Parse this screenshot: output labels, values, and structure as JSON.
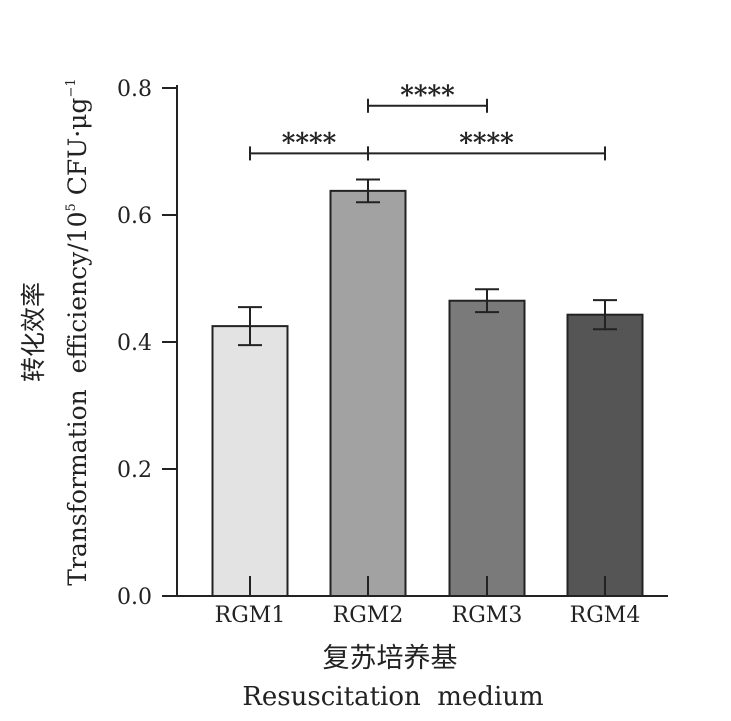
{
  "chart_data": {
    "type": "bar",
    "categories": [
      "RGM1",
      "RGM2",
      "RGM3",
      "RGM4"
    ],
    "values": [
      0.425,
      0.638,
      0.465,
      0.443
    ],
    "errors": [
      0.03,
      0.018,
      0.018,
      0.023
    ],
    "bar_colors": [
      "#e3e3e3",
      "#a2a2a2",
      "#7a7a7a",
      "#555555"
    ],
    "ylim": [
      0,
      0.8
    ],
    "yticks": [
      "0.0",
      "0.2",
      "0.4",
      "0.6",
      "0.8"
    ],
    "ytick_values": [
      0,
      0.2,
      0.4,
      0.6,
      0.8
    ],
    "ylabel_cn": "转化效率",
    "ylabel_en": "Transformation  efficiency/10",
    "ylabel_exp": "5",
    "ylabel_unit": " CFU·μg",
    "ylabel_unit_exp": "−1",
    "xlabel_cn": "复苏培养基",
    "xlabel_en": "Resuscitation  medium",
    "significance": [
      {
        "from": 0,
        "to": 1,
        "y": 0.697,
        "label": "****"
      },
      {
        "from": 1,
        "to": 3,
        "y": 0.697,
        "label": "****"
      },
      {
        "from": 1,
        "to": 2,
        "y": 0.772,
        "label": "****"
      }
    ],
    "grid": false
  }
}
